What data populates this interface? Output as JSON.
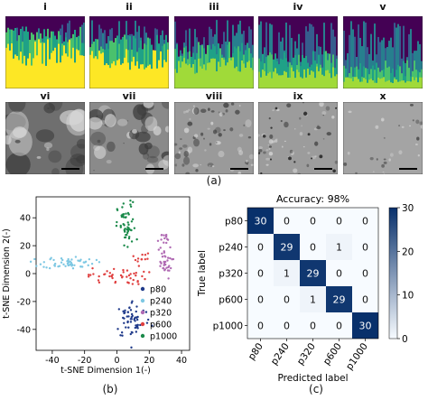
{
  "top": {
    "spectrogram_labels": [
      "i",
      "ii",
      "iii",
      "iv",
      "v"
    ],
    "sem_labels": [
      "vi",
      "vii",
      "viii",
      "ix",
      "x"
    ],
    "caption": "(a)"
  },
  "panel_b": {
    "caption": "(b)"
  },
  "panel_c": {
    "caption": "(c)"
  },
  "colors": {
    "p80": "#1f3a8a",
    "p240": "#7ec8e3",
    "p320": "#b06ab3",
    "p600": "#e04040",
    "p1000": "#1a8a4a",
    "heat_dark": "#08306b",
    "heat_light": "#f7fbff"
  },
  "chart_data": [
    {
      "type": "scatter",
      "title": "",
      "xlabel": "t-SNE Dimension 1(-)",
      "ylabel": "t-SNE Dimension 2(-)",
      "xlim": [
        -50,
        45
      ],
      "ylim": [
        -55,
        55
      ],
      "x_ticks": [
        -40,
        -20,
        0,
        20,
        40
      ],
      "y_ticks": [
        -40,
        -20,
        0,
        20,
        40
      ],
      "legend_position": "bottom-right",
      "series": [
        {
          "name": "p80",
          "clusters": [
            {
              "cx": 10,
              "cy": -33,
              "sx": 5.5,
              "sy": 7,
              "n": 60
            }
          ]
        },
        {
          "name": "p240",
          "clusters": [
            {
              "cx": -30,
              "cy": 8,
              "sx": 8,
              "sy": 2.2,
              "n": 55
            }
          ]
        },
        {
          "name": "p320",
          "clusters": [
            {
              "cx": 28,
              "cy": 25,
              "sx": 2.5,
              "sy": 2.5,
              "n": 12
            },
            {
              "cx": 29,
              "cy": 8,
              "sx": 2.5,
              "sy": 6,
              "n": 35
            }
          ]
        },
        {
          "name": "p600",
          "clusters": [
            {
              "cx": 0,
              "cy": -2,
              "sx": 9,
              "sy": 3,
              "n": 45
            },
            {
              "cx": 15,
              "cy": 11,
              "sx": 3,
              "sy": 2.5,
              "n": 12
            }
          ]
        },
        {
          "name": "p1000",
          "clusters": [
            {
              "cx": 6,
              "cy": 33,
              "sx": 2.8,
              "sy": 9,
              "n": 55
            }
          ]
        }
      ]
    },
    {
      "type": "heatmap",
      "title": "Accuracy: 98%",
      "xlabel": "Predicted label",
      "ylabel": "True label",
      "x_categories": [
        "p80",
        "p240",
        "p320",
        "p600",
        "p1000"
      ],
      "y_categories": [
        "p80",
        "p240",
        "p320",
        "p600",
        "p1000"
      ],
      "values": [
        [
          30,
          0,
          0,
          0,
          0
        ],
        [
          0,
          29,
          0,
          1,
          0
        ],
        [
          0,
          1,
          29,
          0,
          0
        ],
        [
          0,
          0,
          1,
          29,
          0
        ],
        [
          0,
          0,
          0,
          0,
          30
        ]
      ],
      "colorbar": {
        "min": 0,
        "max": 30,
        "ticks": [
          0,
          10,
          20,
          30
        ]
      }
    }
  ]
}
